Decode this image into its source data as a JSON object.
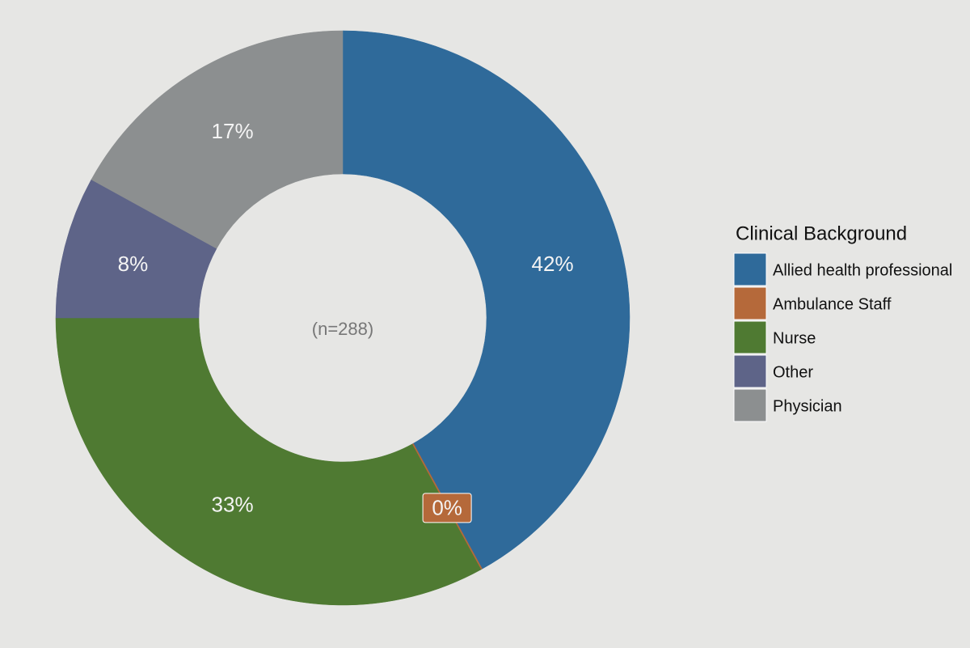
{
  "chart_data": {
    "type": "donut",
    "annotation": "(n=288)",
    "legend_title": "Clinical Background",
    "legend": "right",
    "categories": [
      "Allied health professional",
      "Ambulance Staff",
      "Nurse",
      "Other",
      "Physician"
    ],
    "values": [
      42,
      0,
      33,
      8,
      17
    ],
    "value_labels": [
      "42%",
      "0%",
      "33%",
      "8%",
      "17%"
    ],
    "colors": [
      "#2f6a9a",
      "#b5693a",
      "#4f7a32",
      "#5e6488",
      "#8c8f90"
    ]
  }
}
